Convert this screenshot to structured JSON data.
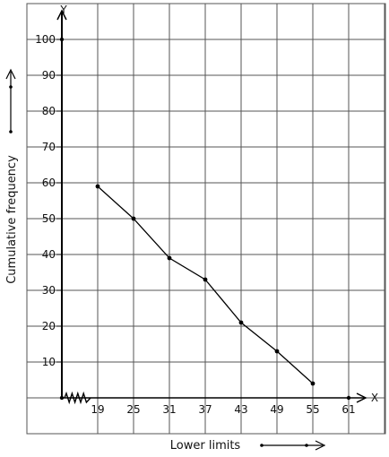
{
  "chart_data": {
    "type": "line",
    "xlabel": "Lower limits",
    "ylabel": "Cumulative frequency",
    "x_axis_letter": "X",
    "y_axis_letter": "Y",
    "x_tick_labels": [
      "19",
      "25",
      "31",
      "37",
      "43",
      "49",
      "55",
      "61"
    ],
    "y_tick_labels": [
      "10",
      "20",
      "30",
      "40",
      "50",
      "60",
      "70",
      "80",
      "90",
      "100"
    ],
    "axis_break": "x",
    "grid": true,
    "series": [
      {
        "points": [
          {
            "x": 19,
            "y": 59
          },
          {
            "x": 25,
            "y": 50
          },
          {
            "x": 31,
            "y": 39
          },
          {
            "x": 37,
            "y": 33
          },
          {
            "x": 43,
            "y": 21
          },
          {
            "x": 49,
            "y": 13
          },
          {
            "x": 55,
            "y": 4
          }
        ]
      }
    ],
    "line_color": "#000000",
    "grid_color": "#555555"
  }
}
